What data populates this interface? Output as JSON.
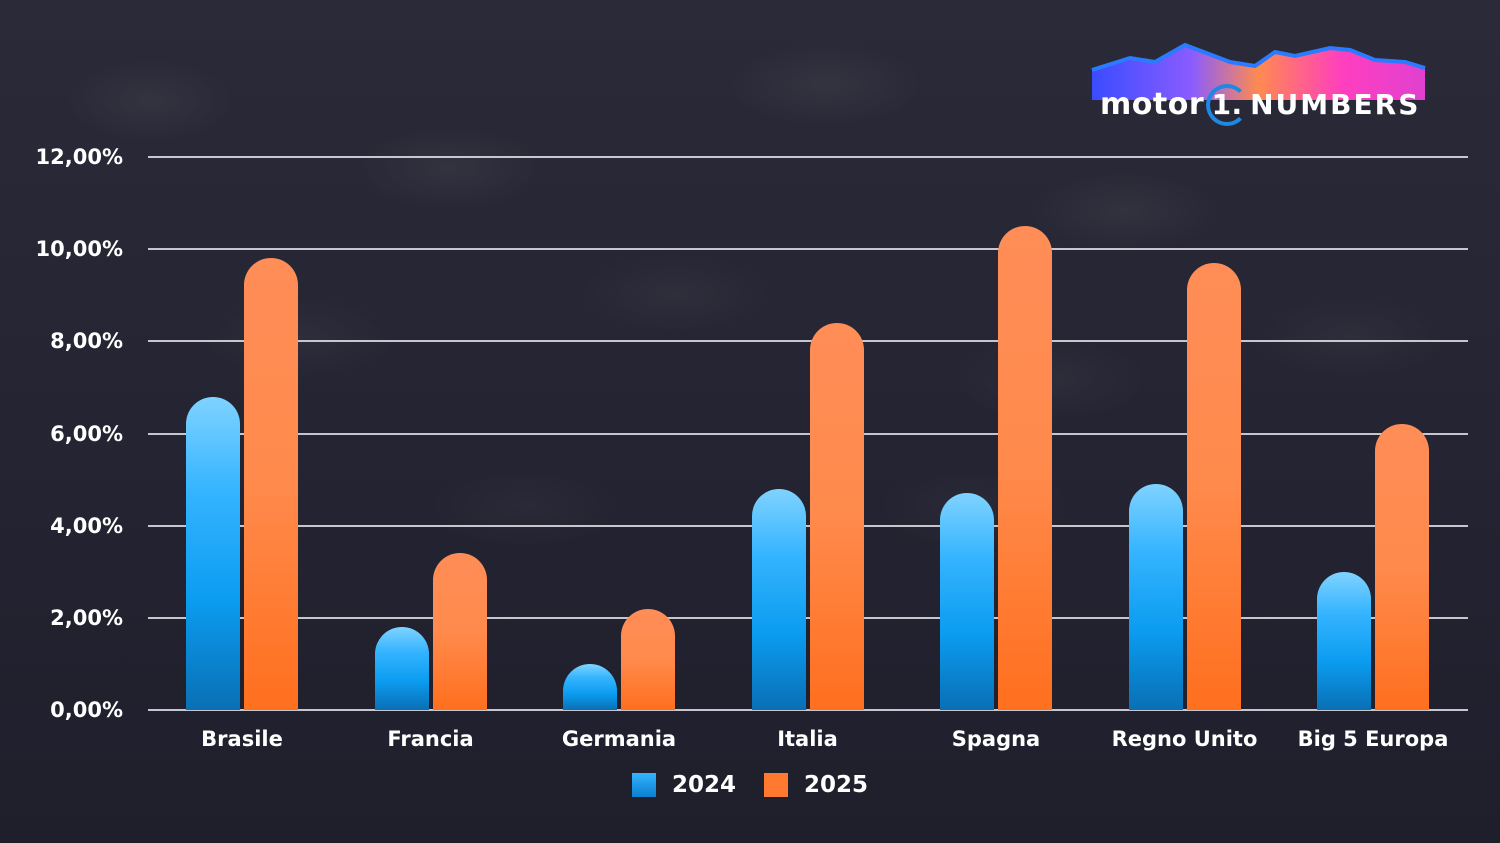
{
  "brand": {
    "logo_text_left": "motor",
    "logo_number": "1.",
    "logo_text_right": "NUMBERS"
  },
  "chart_data": {
    "type": "bar",
    "title": "",
    "xlabel": "",
    "ylabel": "",
    "ylim": [
      0,
      12
    ],
    "y_ticks": [
      "0,00%",
      "2,00%",
      "4,00%",
      "6,00%",
      "8,00%",
      "10,00%",
      "12,00%"
    ],
    "grid": true,
    "legend_position": "bottom",
    "categories": [
      "Brasile",
      "Francia",
      "Germania",
      "Italia",
      "Spagna",
      "Regno Unito",
      "Big 5 Europa"
    ],
    "series": [
      {
        "name": "2024",
        "color": "#1aa3f5",
        "values": [
          6.8,
          1.8,
          1.0,
          4.8,
          4.7,
          4.9,
          3.0
        ]
      },
      {
        "name": "2025",
        "color": "#ff7a30",
        "values": [
          9.8,
          3.4,
          2.2,
          8.4,
          10.5,
          9.7,
          6.2
        ]
      }
    ]
  }
}
